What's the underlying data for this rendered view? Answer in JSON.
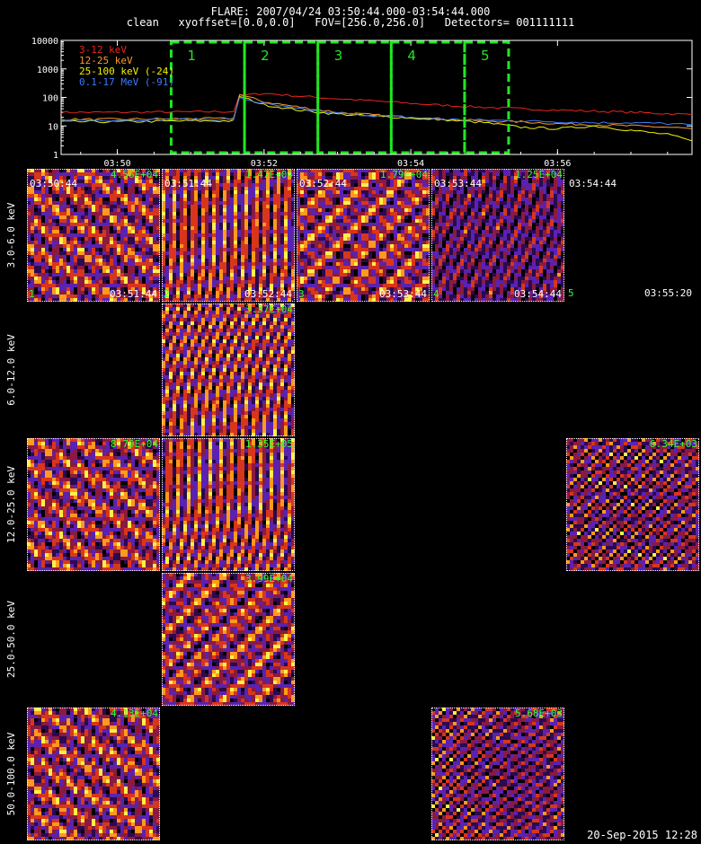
{
  "header": {
    "title": "FLARE: 2007/04/24 03:50:44.000-03:54:44.000",
    "subtitle": "clean   xyoffset=[0.0,0.0]   FOV=[256.0,256.0]   Detectors= 001111111"
  },
  "chart_data": [
    {
      "type": "line",
      "x_unit": "time (UT)",
      "x_ticks": [
        "03:50",
        "03:52",
        "03:54",
        "03:56"
      ],
      "xlim": [
        "03:49:14",
        "03:57:50"
      ],
      "y_scale": "log",
      "y_ticks": [
        "1",
        "10",
        "100",
        "1000",
        "10000"
      ],
      "ylim": [
        1,
        10000
      ],
      "grid": false,
      "legend_position": "top-left",
      "x": [
        "03:49:14",
        "03:50:00",
        "03:51:00",
        "03:51:35",
        "03:51:40",
        "03:52:00",
        "03:52:30",
        "03:53:00",
        "03:53:30",
        "03:54:00",
        "03:54:30",
        "03:55:00",
        "03:55:30",
        "03:56:00",
        "03:56:30",
        "03:57:00",
        "03:57:30",
        "03:57:50"
      ],
      "series": [
        {
          "name": "3-12 keV",
          "color": "#e8241c",
          "values": [
            30,
            30,
            31,
            32,
            115,
            140,
            110,
            90,
            75,
            62,
            52,
            45,
            40,
            36,
            33,
            30,
            27,
            25
          ]
        },
        {
          "name": "12-25 keV",
          "color": "#ff9a2e",
          "values": [
            17,
            17,
            18,
            18,
            125,
            70,
            45,
            30,
            24,
            20,
            17,
            15,
            14,
            12,
            11,
            10,
            9,
            8
          ]
        },
        {
          "name": "25-100 keV (-24)",
          "color": "#f2f200",
          "values": [
            14,
            14,
            15,
            15,
            110,
            55,
            35,
            26,
            22,
            19,
            16,
            13,
            9,
            8,
            10,
            7,
            5,
            3
          ]
        },
        {
          "name": "0.1-17 MeV (-91)",
          "color": "#3a7bff",
          "values": [
            16,
            16,
            17,
            17,
            95,
            60,
            38,
            28,
            23,
            20,
            17,
            16,
            15,
            14,
            13,
            13,
            12,
            11
          ]
        }
      ],
      "time_intervals": [
        {
          "label": "1",
          "start": "03:50:44",
          "end": "03:51:44"
        },
        {
          "label": "2",
          "start": "03:51:44",
          "end": "03:52:44"
        },
        {
          "label": "3",
          "start": "03:52:44",
          "end": "03:53:44"
        },
        {
          "label": "4",
          "start": "03:53:44",
          "end": "03:54:44"
        },
        {
          "label": "5",
          "start": "03:54:44",
          "end": "03:55:20"
        }
      ],
      "interval_color": "#22e622"
    },
    {
      "type": "heatmap",
      "rows": [
        "3.0-6.0 keV",
        "6.0-12.0 keV",
        "12.0-25.0 keV",
        "25.0-50.0 keV",
        "50.0-100.0 keV"
      ],
      "columns": [
        "1",
        "2",
        "3",
        "4",
        "5"
      ],
      "column_start_times": [
        "03:50:44",
        "03:51:44",
        "03:52:44",
        "03:53:44",
        "03:54:44"
      ],
      "column_end_times": [
        "03:51:44",
        "03:52:44",
        "03:53:44",
        "03:54:44",
        "03:55:20"
      ],
      "images": [
        {
          "row": 0,
          "col": 0,
          "max": "4.56E+04",
          "pattern": "mixed"
        },
        {
          "row": 0,
          "col": 1,
          "max": "1.47E+04",
          "pattern": "stripes"
        },
        {
          "row": 0,
          "col": 2,
          "max": "1.79E+04",
          "pattern": "rings"
        },
        {
          "row": 0,
          "col": 3,
          "max": "1.25E+04",
          "pattern": "stripes-dark"
        },
        {
          "row": 1,
          "col": 1,
          "max": "3.37E+04",
          "pattern": "stripes"
        },
        {
          "row": 2,
          "col": 0,
          "max": "8.79E+04",
          "pattern": "blobs"
        },
        {
          "row": 2,
          "col": 1,
          "max": "1.35E+05",
          "pattern": "stripes"
        },
        {
          "row": 2,
          "col": 4,
          "max": "6.34E+03",
          "pattern": "noise"
        },
        {
          "row": 3,
          "col": 1,
          "max": "3.99E+04",
          "pattern": "rings"
        },
        {
          "row": 4,
          "col": 0,
          "max": "4.13E+04",
          "pattern": "blobs"
        },
        {
          "row": 4,
          "col": 3,
          "max": "5.68E+03",
          "pattern": "noise"
        }
      ],
      "colormap": [
        "#000000",
        "#2a0a50",
        "#5a22b0",
        "#8a1a40",
        "#d8361c",
        "#ff9a1c",
        "#fff04a"
      ]
    }
  ],
  "footer": {
    "timestamp": "20-Sep-2015 12:28"
  }
}
